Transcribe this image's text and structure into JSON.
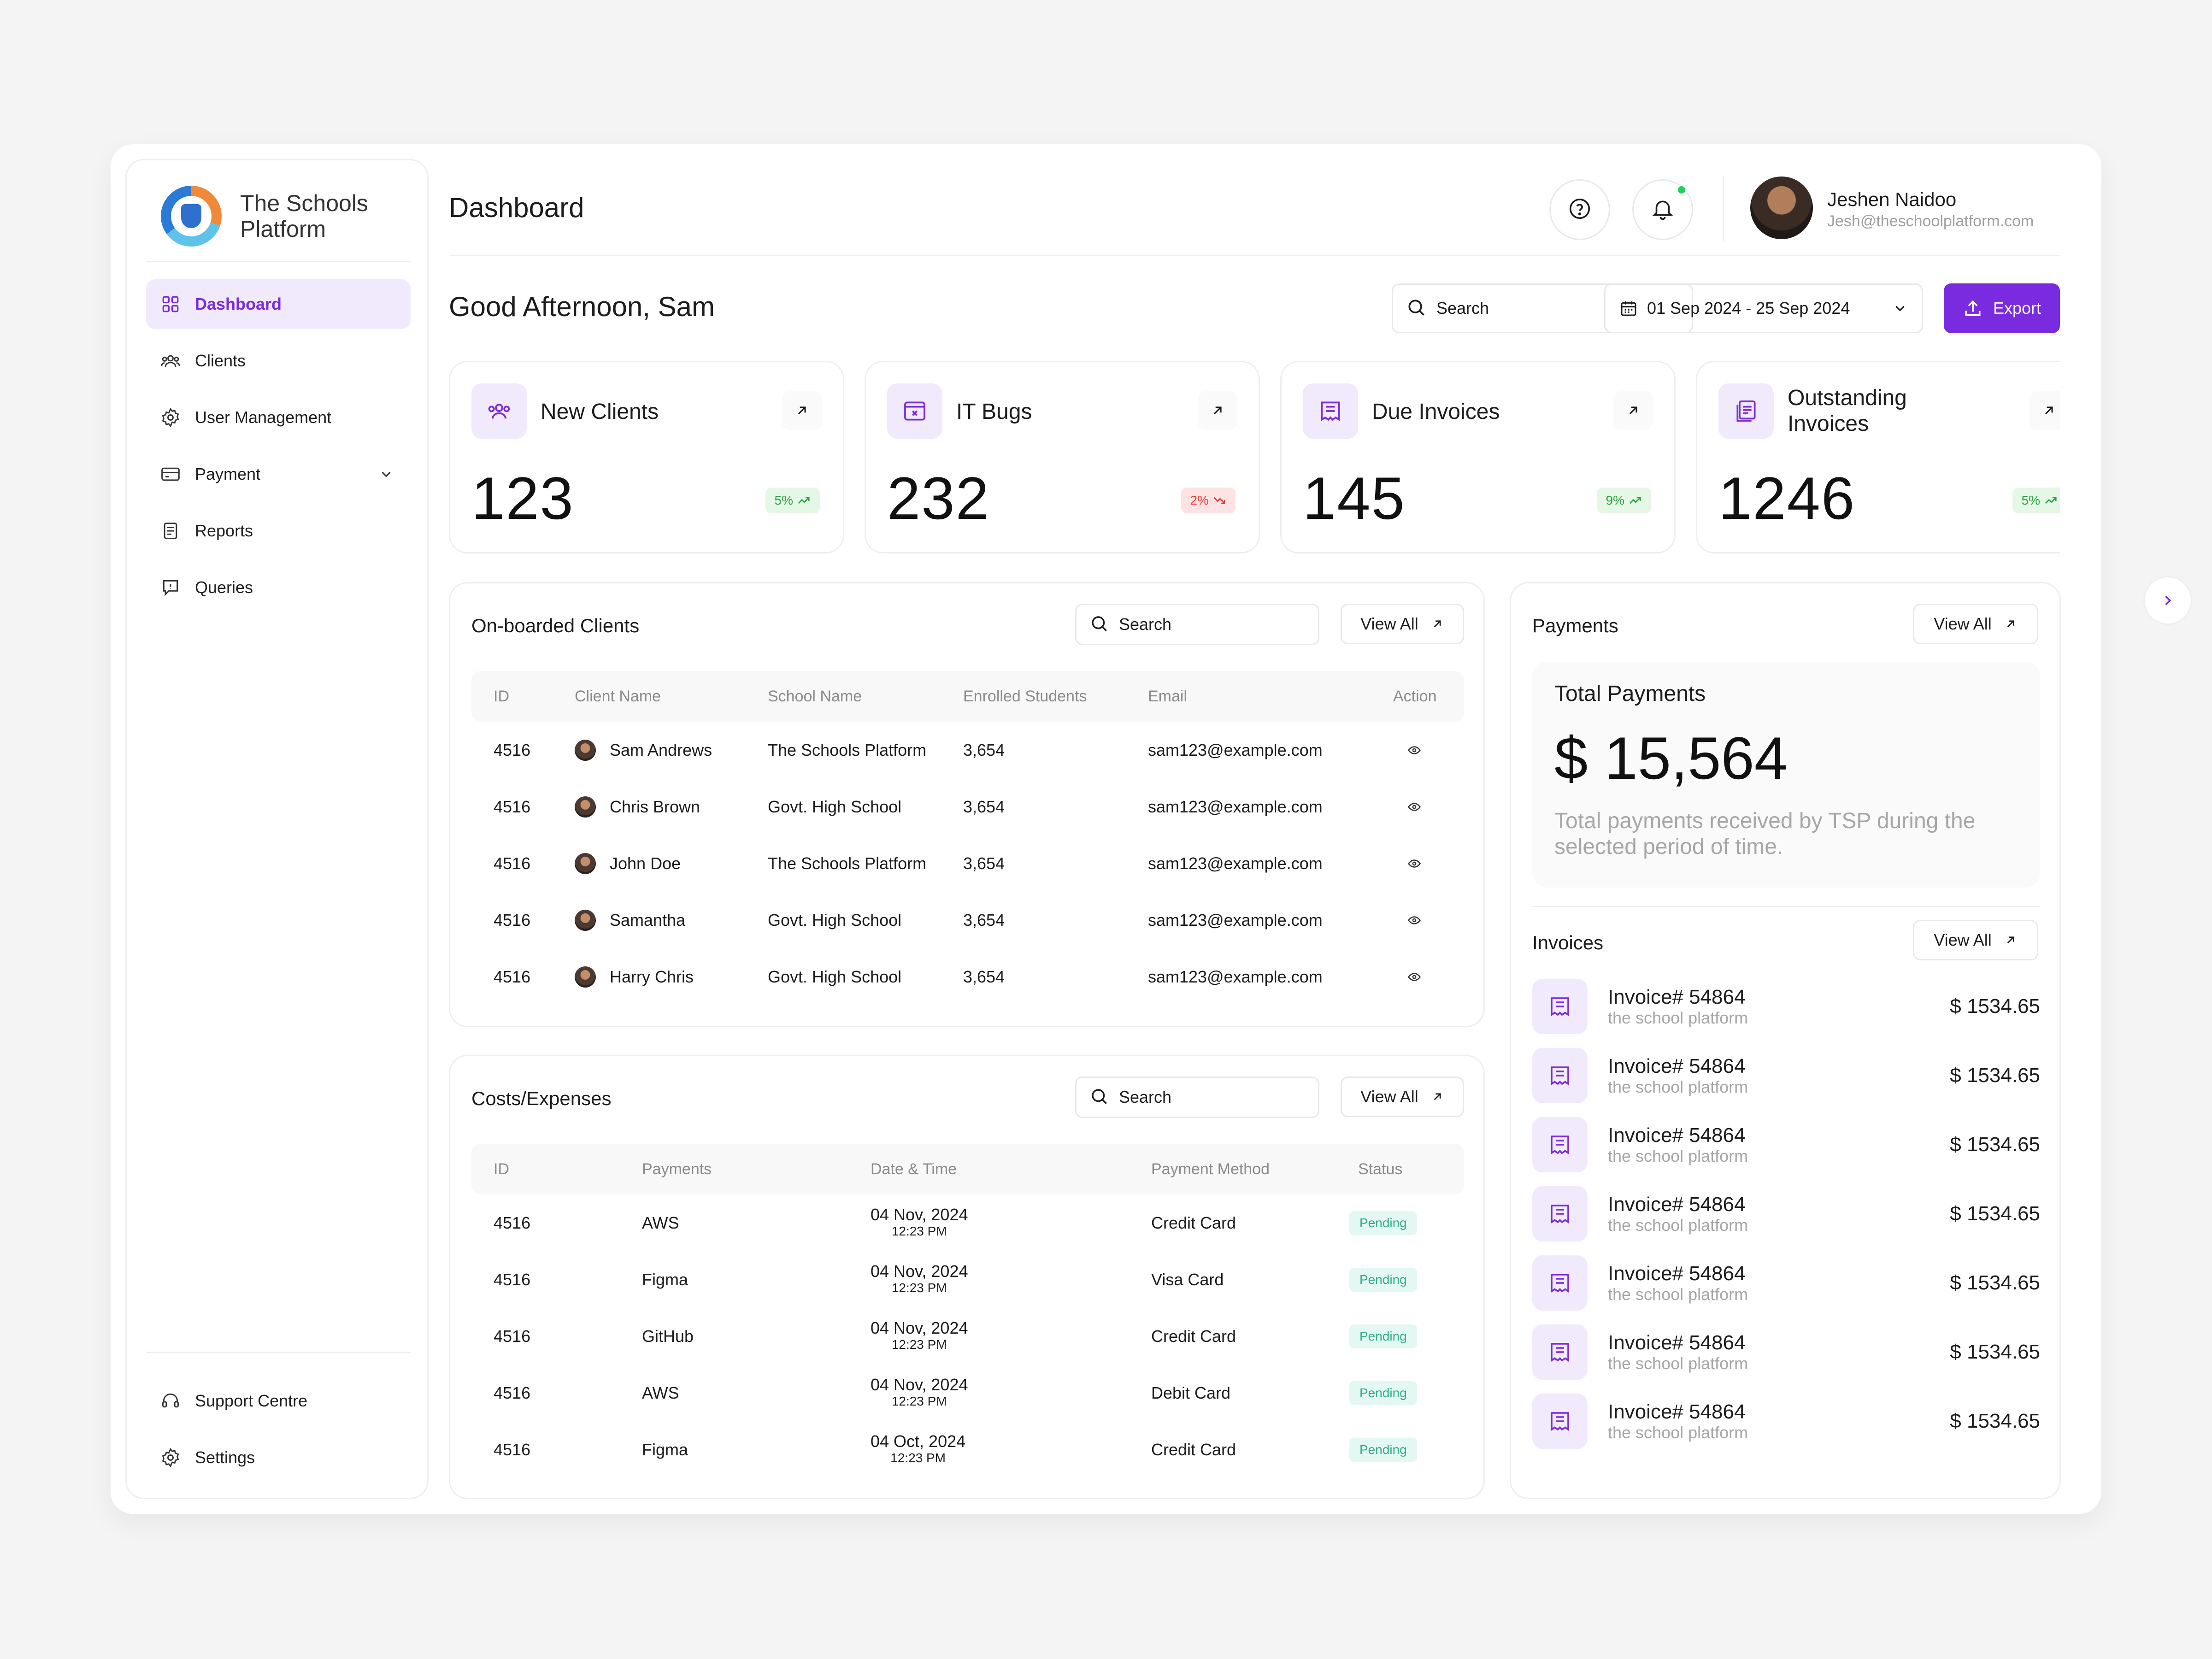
{
  "brand": {
    "name": "The Schools Platform"
  },
  "sidebar": {
    "items": [
      {
        "label": "Dashboard",
        "icon": "grid-icon",
        "active": true
      },
      {
        "label": "Clients",
        "icon": "users-icon"
      },
      {
        "label": "User Management",
        "icon": "gear-icon"
      },
      {
        "label": "Payment",
        "icon": "card-icon",
        "has_chevron": true
      },
      {
        "label": "Reports",
        "icon": "report-icon"
      },
      {
        "label": "Queries",
        "icon": "chat-icon"
      }
    ],
    "bottom": [
      {
        "label": "Support Centre",
        "icon": "headset-icon"
      },
      {
        "label": "Settings",
        "icon": "gear-icon"
      }
    ]
  },
  "header": {
    "title": "Dashboard",
    "user_name": "Jeshen Naidoo",
    "user_email": "Jesh@theschoolplatform.com"
  },
  "toolbar": {
    "greeting": "Good Afternoon, Sam",
    "search_placeholder": "Search",
    "date_range": "01 Sep 2024 - 25 Sep 2024",
    "export_label": "Export"
  },
  "stats": [
    {
      "label": "New Clients",
      "value": "123",
      "change": "5%",
      "trend": "up"
    },
    {
      "label": "IT Bugs",
      "value": "232",
      "change": "2%",
      "trend": "down"
    },
    {
      "label": "Due Invoices",
      "value": "145",
      "change": "9%",
      "trend": "up"
    },
    {
      "label": "Outstanding Invoices",
      "value": "1246",
      "change": "5%",
      "trend": "up"
    }
  ],
  "onboarded": {
    "title": "On-boarded Clients",
    "search_placeholder": "Search",
    "view_all": "View All",
    "columns": [
      "ID",
      "Client Name",
      "School Name",
      "Enrolled Students",
      "Email",
      "Action"
    ],
    "rows": [
      {
        "id": "4516",
        "client": "Sam Andrews",
        "school": "The Schools Platform",
        "students": "3,654",
        "email": "sam123@example.com"
      },
      {
        "id": "4516",
        "client": "Chris Brown",
        "school": "Govt. High School",
        "students": "3,654",
        "email": "sam123@example.com"
      },
      {
        "id": "4516",
        "client": "John Doe",
        "school": "The Schools Platform",
        "students": "3,654",
        "email": "sam123@example.com"
      },
      {
        "id": "4516",
        "client": "Samantha",
        "school": "Govt. High School",
        "students": "3,654",
        "email": "sam123@example.com"
      },
      {
        "id": "4516",
        "client": "Harry Chris",
        "school": "Govt. High School",
        "students": "3,654",
        "email": "sam123@example.com"
      }
    ]
  },
  "costs": {
    "title": "Costs/Expenses",
    "search_placeholder": "Search",
    "view_all": "View All",
    "columns": [
      "ID",
      "Payments",
      "Date & Time",
      "Payment Method",
      "Status"
    ],
    "rows": [
      {
        "id": "4516",
        "payment": "AWS",
        "date": "04 Nov, 2024",
        "time": "12:23 PM",
        "method": "Credit Card",
        "status": "Pending"
      },
      {
        "id": "4516",
        "payment": "Figma",
        "date": "04 Nov, 2024",
        "time": "12:23 PM",
        "method": "Visa Card",
        "status": "Pending"
      },
      {
        "id": "4516",
        "payment": "GitHub",
        "date": "04 Nov, 2024",
        "time": "12:23 PM",
        "method": "Credit Card",
        "status": "Pending"
      },
      {
        "id": "4516",
        "payment": "AWS",
        "date": "04 Nov, 2024",
        "time": "12:23 PM",
        "method": "Debit Card",
        "status": "Pending"
      },
      {
        "id": "4516",
        "payment": "Figma",
        "date": "04 Oct, 2024",
        "time": "12:23 PM",
        "method": "Credit Card",
        "status": "Pending"
      }
    ]
  },
  "payments": {
    "title": "Payments",
    "view_all": "View All",
    "total_label": "Total Payments",
    "total_value": "$ 15,564",
    "total_desc": "Total payments received by TSP during the selected period of time."
  },
  "invoices": {
    "title": "Invoices",
    "view_all": "View All",
    "items": [
      {
        "title": "Invoice# 54864",
        "subtitle": "the school platform",
        "amount": "$ 1534.65"
      },
      {
        "title": "Invoice# 54864",
        "subtitle": "the school platform",
        "amount": "$ 1534.65"
      },
      {
        "title": "Invoice# 54864",
        "subtitle": "the school platform",
        "amount": "$ 1534.65"
      },
      {
        "title": "Invoice# 54864",
        "subtitle": "the school platform",
        "amount": "$ 1534.65"
      },
      {
        "title": "Invoice# 54864",
        "subtitle": "the school platform",
        "amount": "$ 1534.65"
      },
      {
        "title": "Invoice# 54864",
        "subtitle": "the school platform",
        "amount": "$ 1534.65"
      },
      {
        "title": "Invoice# 54864",
        "subtitle": "the school platform",
        "amount": "$ 1534.65"
      }
    ]
  },
  "colors": {
    "accent": "#7a2be0",
    "accent_soft": "#f1eafd",
    "positive": "#2ea043",
    "negative": "#e23b3b",
    "pending": "#2fa987"
  }
}
